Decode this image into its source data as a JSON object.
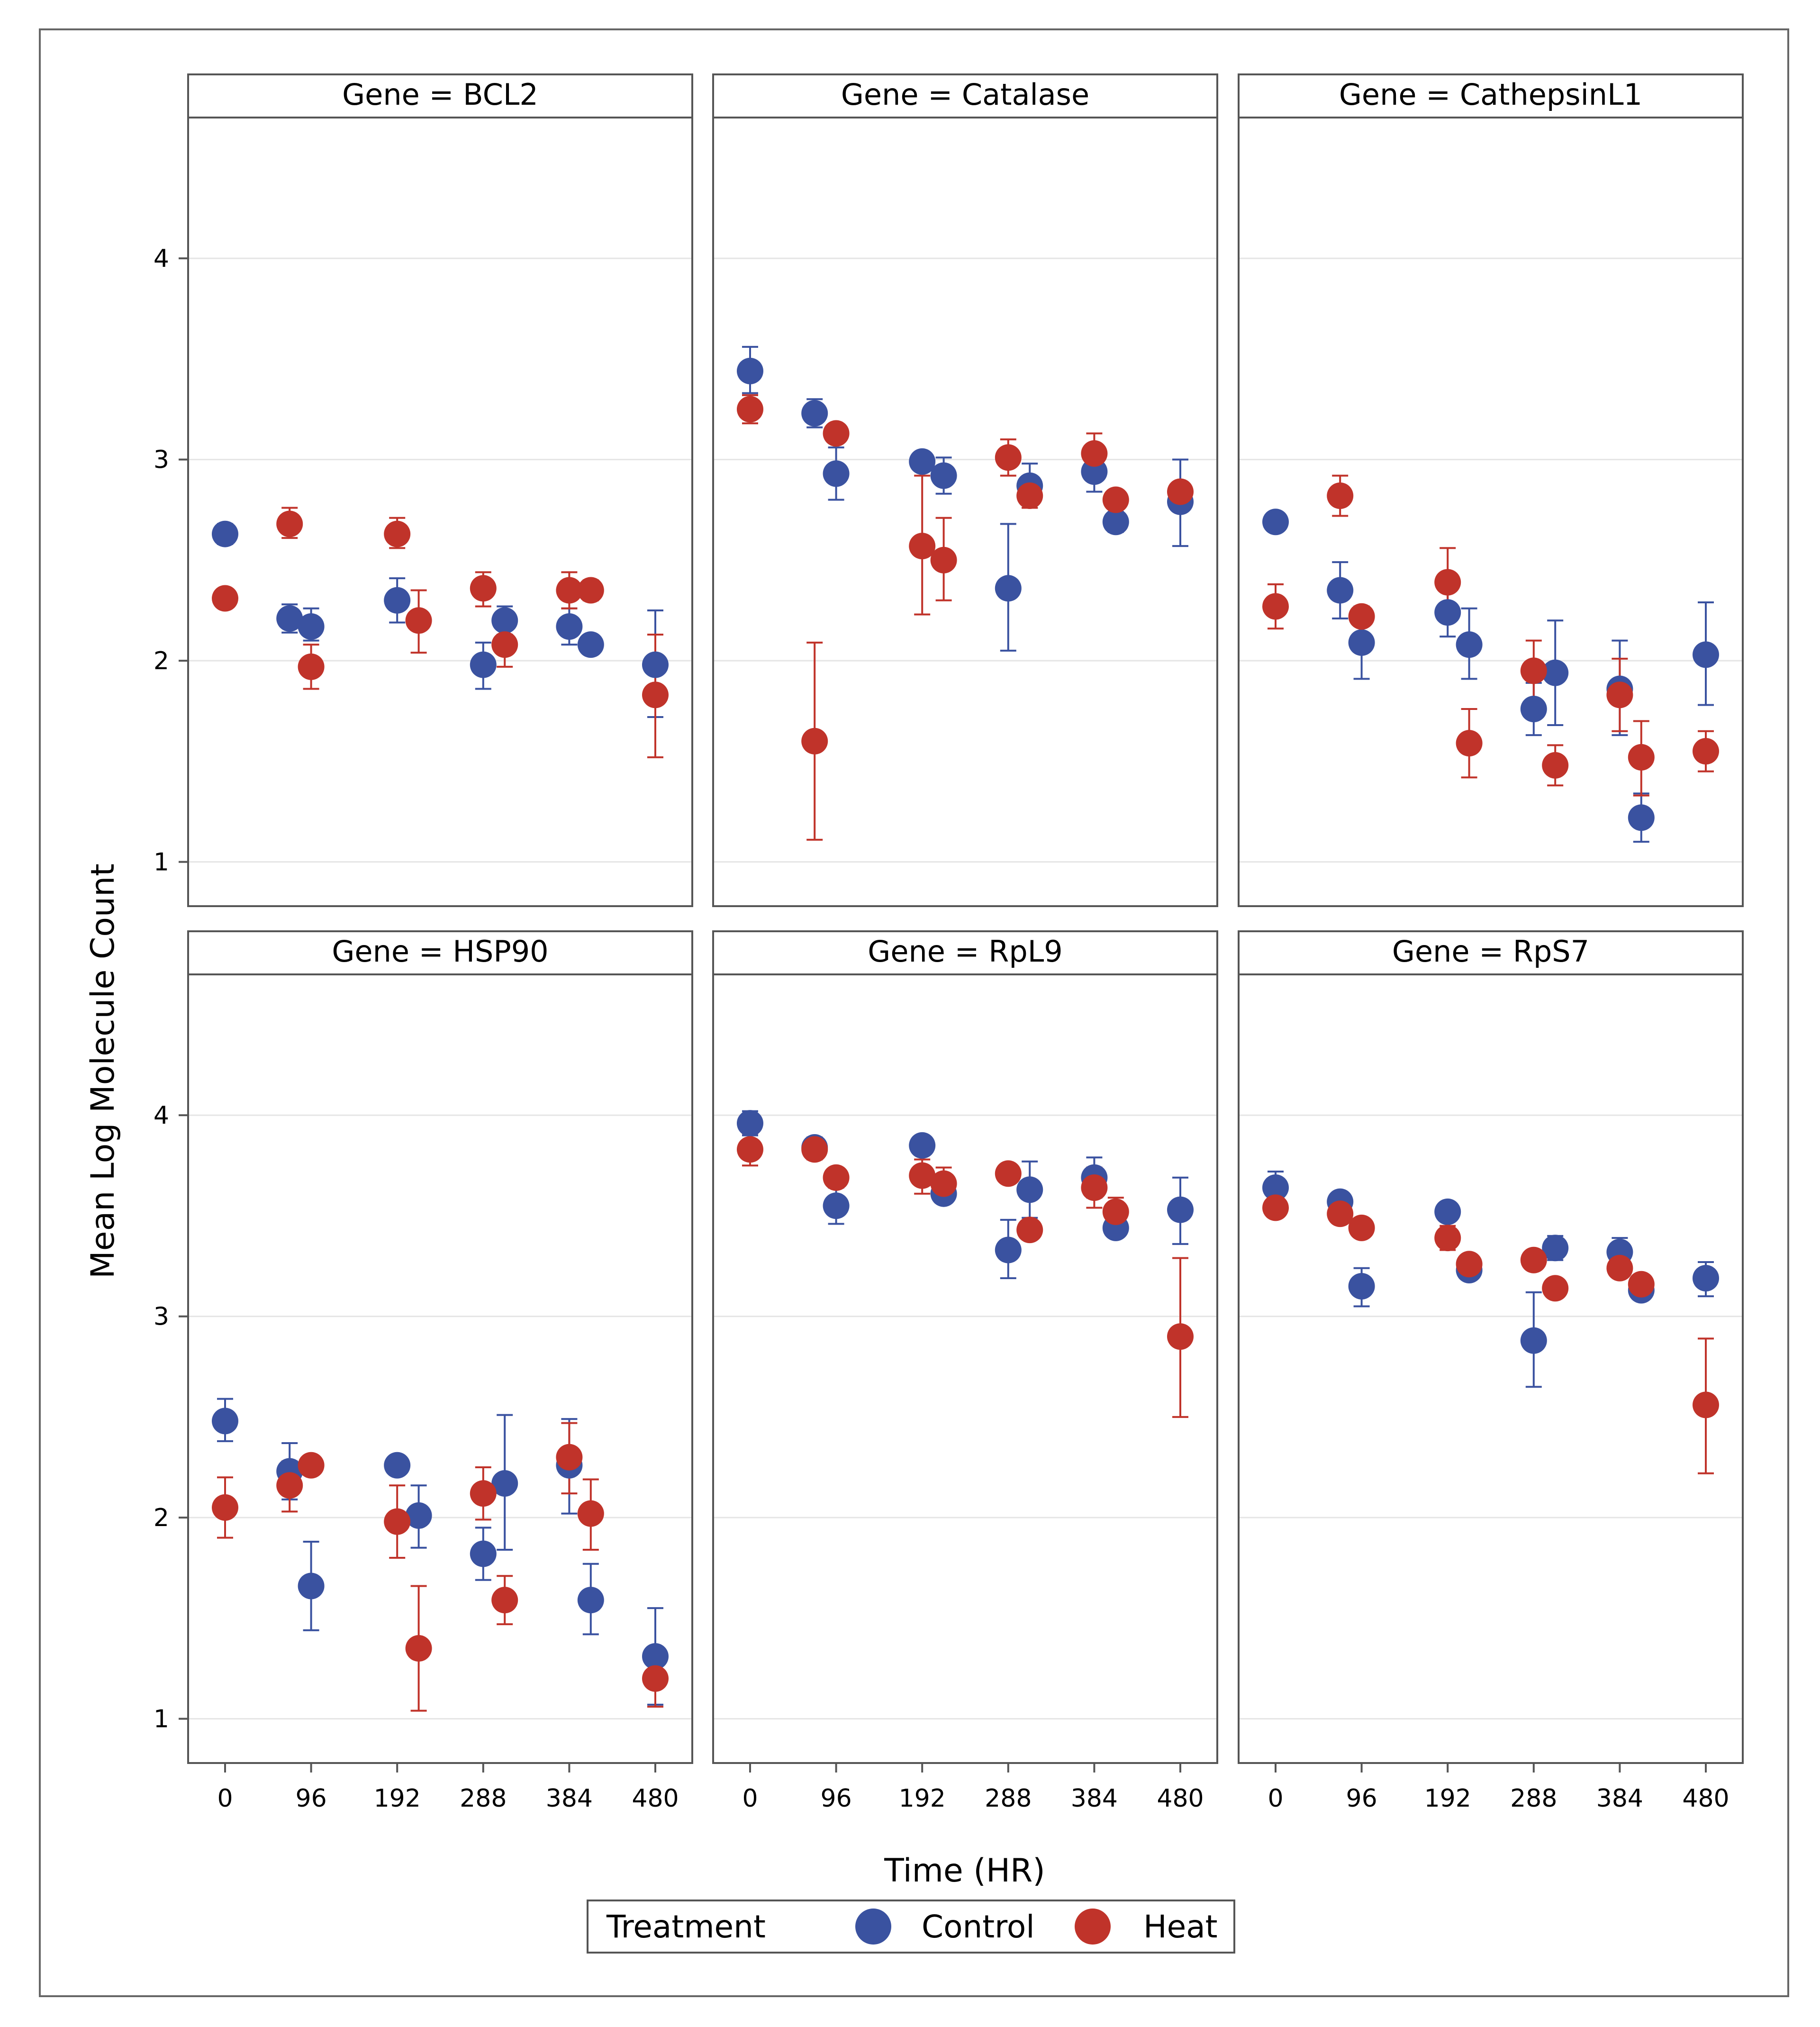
{
  "colors": {
    "control": "#3a52a0",
    "heat": "#c0332a",
    "grid": "#e5e5e5",
    "frame": "#555555",
    "header_bg": "#ffffff"
  },
  "chart_data": {
    "type": "scatter",
    "subtype": "dot plot with error bars, faceted panel",
    "xlabel": "Time (HR)",
    "ylabel": "Mean Log Molecule Count",
    "xticks": [
      0,
      96,
      192,
      288,
      384,
      480
    ],
    "yticks": [
      1,
      2,
      3,
      4
    ],
    "xlim": [
      -40,
      520
    ],
    "ylim": [
      0.78,
      4.7
    ],
    "grid": true,
    "legend": {
      "title": "Treatment",
      "placement": "bottom-center",
      "entries": [
        {
          "name": "Control",
          "color_key": "control"
        },
        {
          "name": "Heat",
          "color_key": "heat"
        }
      ]
    },
    "panels": [
      {
        "title": "Gene = BCL2",
        "series": [
          {
            "name": "Control",
            "points": [
              {
                "x": 0,
                "y": 2.63,
                "lo": 2.58,
                "hi": 2.68
              },
              {
                "x": 72,
                "y": 2.21,
                "lo": 2.14,
                "hi": 2.28
              },
              {
                "x": 96,
                "y": 2.17,
                "lo": 2.1,
                "hi": 2.26
              },
              {
                "x": 192,
                "y": 2.3,
                "lo": 2.19,
                "hi": 2.41
              },
              {
                "x": 288,
                "y": 1.98,
                "lo": 1.86,
                "hi": 2.09
              },
              {
                "x": 312,
                "y": 2.2,
                "lo": 2.13,
                "hi": 2.27
              },
              {
                "x": 384,
                "y": 2.17,
                "lo": 2.08,
                "hi": 2.26
              },
              {
                "x": 408,
                "y": 2.08,
                "lo": 2.05,
                "hi": 2.12
              },
              {
                "x": 480,
                "y": 1.98,
                "lo": 1.72,
                "hi": 2.25
              }
            ]
          },
          {
            "name": "Heat",
            "points": [
              {
                "x": 0,
                "y": 2.31,
                "lo": 2.29,
                "hi": 2.33
              },
              {
                "x": 72,
                "y": 2.68,
                "lo": 2.61,
                "hi": 2.76
              },
              {
                "x": 96,
                "y": 1.97,
                "lo": 1.86,
                "hi": 2.08
              },
              {
                "x": 192,
                "y": 2.63,
                "lo": 2.56,
                "hi": 2.71
              },
              {
                "x": 216,
                "y": 2.2,
                "lo": 2.04,
                "hi": 2.35
              },
              {
                "x": 288,
                "y": 2.36,
                "lo": 2.27,
                "hi": 2.44
              },
              {
                "x": 312,
                "y": 2.08,
                "lo": 1.97,
                "hi": 2.19
              },
              {
                "x": 384,
                "y": 2.35,
                "lo": 2.26,
                "hi": 2.44
              },
              {
                "x": 408,
                "y": 2.35,
                "lo": 2.3,
                "hi": 2.4
              },
              {
                "x": 480,
                "y": 1.83,
                "lo": 1.52,
                "hi": 2.13
              }
            ]
          }
        ]
      },
      {
        "title": "Gene = Catalase",
        "series": [
          {
            "name": "Control",
            "points": [
              {
                "x": 0,
                "y": 3.44,
                "lo": 3.33,
                "hi": 3.56
              },
              {
                "x": 72,
                "y": 3.23,
                "lo": 3.16,
                "hi": 3.3
              },
              {
                "x": 96,
                "y": 2.93,
                "lo": 2.8,
                "hi": 3.06
              },
              {
                "x": 192,
                "y": 2.99,
                "lo": 2.95,
                "hi": 3.03
              },
              {
                "x": 216,
                "y": 2.92,
                "lo": 2.83,
                "hi": 3.01
              },
              {
                "x": 288,
                "y": 2.36,
                "lo": 2.05,
                "hi": 2.68
              },
              {
                "x": 312,
                "y": 2.87,
                "lo": 2.76,
                "hi": 2.98
              },
              {
                "x": 384,
                "y": 2.94,
                "lo": 2.84,
                "hi": 3.04
              },
              {
                "x": 408,
                "y": 2.69,
                "lo": 2.64,
                "hi": 2.74
              },
              {
                "x": 480,
                "y": 2.79,
                "lo": 2.57,
                "hi": 3.0
              }
            ]
          },
          {
            "name": "Heat",
            "points": [
              {
                "x": 0,
                "y": 3.25,
                "lo": 3.18,
                "hi": 3.32
              },
              {
                "x": 72,
                "y": 1.6,
                "lo": 1.11,
                "hi": 2.09
              },
              {
                "x": 96,
                "y": 3.13,
                "lo": 3.09,
                "hi": 3.17
              },
              {
                "x": 192,
                "y": 2.57,
                "lo": 2.23,
                "hi": 2.92
              },
              {
                "x": 216,
                "y": 2.5,
                "lo": 2.3,
                "hi": 2.71
              },
              {
                "x": 288,
                "y": 3.01,
                "lo": 2.92,
                "hi": 3.1
              },
              {
                "x": 312,
                "y": 2.82,
                "lo": 2.76,
                "hi": 2.88
              },
              {
                "x": 384,
                "y": 3.03,
                "lo": 2.93,
                "hi": 3.13
              },
              {
                "x": 408,
                "y": 2.8,
                "lo": 2.76,
                "hi": 2.84
              },
              {
                "x": 480,
                "y": 2.84,
                "lo": 2.8,
                "hi": 2.88
              }
            ]
          }
        ]
      },
      {
        "title": "Gene = CathepsinL1",
        "series": [
          {
            "name": "Control",
            "points": [
              {
                "x": 0,
                "y": 2.69,
                "lo": 2.67,
                "hi": 2.71
              },
              {
                "x": 72,
                "y": 2.35,
                "lo": 2.21,
                "hi": 2.49
              },
              {
                "x": 96,
                "y": 2.09,
                "lo": 1.91,
                "hi": 2.27
              },
              {
                "x": 192,
                "y": 2.24,
                "lo": 2.12,
                "hi": 2.35
              },
              {
                "x": 216,
                "y": 2.08,
                "lo": 1.91,
                "hi": 2.26
              },
              {
                "x": 288,
                "y": 1.76,
                "lo": 1.63,
                "hi": 1.89
              },
              {
                "x": 312,
                "y": 1.94,
                "lo": 1.68,
                "hi": 2.2
              },
              {
                "x": 384,
                "y": 1.86,
                "lo": 1.63,
                "hi": 2.1
              },
              {
                "x": 408,
                "y": 1.22,
                "lo": 1.1,
                "hi": 1.34
              },
              {
                "x": 480,
                "y": 2.03,
                "lo": 1.78,
                "hi": 2.29
              }
            ]
          },
          {
            "name": "Heat",
            "points": [
              {
                "x": 0,
                "y": 2.27,
                "lo": 2.16,
                "hi": 2.38
              },
              {
                "x": 72,
                "y": 2.82,
                "lo": 2.72,
                "hi": 2.92
              },
              {
                "x": 96,
                "y": 2.22,
                "lo": 2.18,
                "hi": 2.26
              },
              {
                "x": 192,
                "y": 2.39,
                "lo": 2.22,
                "hi": 2.56
              },
              {
                "x": 216,
                "y": 1.59,
                "lo": 1.42,
                "hi": 1.76
              },
              {
                "x": 288,
                "y": 1.95,
                "lo": 1.8,
                "hi": 2.1
              },
              {
                "x": 312,
                "y": 1.48,
                "lo": 1.38,
                "hi": 1.58
              },
              {
                "x": 384,
                "y": 1.83,
                "lo": 1.65,
                "hi": 2.01
              },
              {
                "x": 408,
                "y": 1.52,
                "lo": 1.33,
                "hi": 1.7
              },
              {
                "x": 480,
                "y": 1.55,
                "lo": 1.45,
                "hi": 1.65
              }
            ]
          }
        ]
      },
      {
        "title": "Gene = HSP90",
        "series": [
          {
            "name": "Control",
            "points": [
              {
                "x": 0,
                "y": 2.48,
                "lo": 2.38,
                "hi": 2.59
              },
              {
                "x": 72,
                "y": 2.23,
                "lo": 2.09,
                "hi": 2.37
              },
              {
                "x": 96,
                "y": 1.66,
                "lo": 1.44,
                "hi": 1.88
              },
              {
                "x": 192,
                "y": 2.26,
                "lo": 2.22,
                "hi": 2.3
              },
              {
                "x": 216,
                "y": 2.01,
                "lo": 1.85,
                "hi": 2.16
              },
              {
                "x": 288,
                "y": 1.82,
                "lo": 1.69,
                "hi": 1.95
              },
              {
                "x": 312,
                "y": 2.17,
                "lo": 1.84,
                "hi": 2.51
              },
              {
                "x": 384,
                "y": 2.26,
                "lo": 2.02,
                "hi": 2.49
              },
              {
                "x": 408,
                "y": 1.59,
                "lo": 1.42,
                "hi": 1.77
              },
              {
                "x": 480,
                "y": 1.31,
                "lo": 1.07,
                "hi": 1.55
              }
            ]
          },
          {
            "name": "Heat",
            "points": [
              {
                "x": 0,
                "y": 2.05,
                "lo": 1.9,
                "hi": 2.2
              },
              {
                "x": 72,
                "y": 2.16,
                "lo": 2.03,
                "hi": 2.28
              },
              {
                "x": 96,
                "y": 2.26,
                "lo": 2.23,
                "hi": 2.29
              },
              {
                "x": 192,
                "y": 1.98,
                "lo": 1.8,
                "hi": 2.16
              },
              {
                "x": 216,
                "y": 1.35,
                "lo": 1.04,
                "hi": 1.66
              },
              {
                "x": 288,
                "y": 2.12,
                "lo": 1.99,
                "hi": 2.25
              },
              {
                "x": 312,
                "y": 1.59,
                "lo": 1.47,
                "hi": 1.71
              },
              {
                "x": 384,
                "y": 2.3,
                "lo": 2.12,
                "hi": 2.47
              },
              {
                "x": 408,
                "y": 2.02,
                "lo": 1.84,
                "hi": 2.19
              },
              {
                "x": 480,
                "y": 1.2,
                "lo": 1.06,
                "hi": 1.33
              }
            ]
          }
        ]
      },
      {
        "title": "Gene = RpL9",
        "series": [
          {
            "name": "Control",
            "points": [
              {
                "x": 0,
                "y": 3.96,
                "lo": 3.9,
                "hi": 4.02
              },
              {
                "x": 72,
                "y": 3.84,
                "lo": 3.8,
                "hi": 3.88
              },
              {
                "x": 96,
                "y": 3.55,
                "lo": 3.46,
                "hi": 3.64
              },
              {
                "x": 192,
                "y": 3.85,
                "lo": 3.81,
                "hi": 3.89
              },
              {
                "x": 216,
                "y": 3.61,
                "lo": 3.57,
                "hi": 3.65
              },
              {
                "x": 288,
                "y": 3.33,
                "lo": 3.19,
                "hi": 3.48
              },
              {
                "x": 312,
                "y": 3.63,
                "lo": 3.49,
                "hi": 3.77
              },
              {
                "x": 384,
                "y": 3.69,
                "lo": 3.59,
                "hi": 3.79
              },
              {
                "x": 408,
                "y": 3.44,
                "lo": 3.4,
                "hi": 3.48
              },
              {
                "x": 480,
                "y": 3.53,
                "lo": 3.36,
                "hi": 3.69
              }
            ]
          },
          {
            "name": "Heat",
            "points": [
              {
                "x": 0,
                "y": 3.83,
                "lo": 3.75,
                "hi": 3.91
              },
              {
                "x": 72,
                "y": 3.83,
                "lo": 3.78,
                "hi": 3.89
              },
              {
                "x": 96,
                "y": 3.69,
                "lo": 3.65,
                "hi": 3.73
              },
              {
                "x": 192,
                "y": 3.7,
                "lo": 3.61,
                "hi": 3.78
              },
              {
                "x": 216,
                "y": 3.66,
                "lo": 3.59,
                "hi": 3.74
              },
              {
                "x": 288,
                "y": 3.71,
                "lo": 3.67,
                "hi": 3.75
              },
              {
                "x": 312,
                "y": 3.43,
                "lo": 3.39,
                "hi": 3.47
              },
              {
                "x": 384,
                "y": 3.64,
                "lo": 3.54,
                "hi": 3.74
              },
              {
                "x": 408,
                "y": 3.52,
                "lo": 3.45,
                "hi": 3.59
              },
              {
                "x": 480,
                "y": 2.9,
                "lo": 2.5,
                "hi": 3.29
              }
            ]
          }
        ]
      },
      {
        "title": "Gene = RpS7",
        "series": [
          {
            "name": "Control",
            "points": [
              {
                "x": 0,
                "y": 3.64,
                "lo": 3.57,
                "hi": 3.72
              },
              {
                "x": 72,
                "y": 3.57,
                "lo": 3.53,
                "hi": 3.61
              },
              {
                "x": 96,
                "y": 3.15,
                "lo": 3.05,
                "hi": 3.24
              },
              {
                "x": 192,
                "y": 3.52,
                "lo": 3.48,
                "hi": 3.56
              },
              {
                "x": 216,
                "y": 3.23,
                "lo": 3.19,
                "hi": 3.27
              },
              {
                "x": 288,
                "y": 2.88,
                "lo": 2.65,
                "hi": 3.12
              },
              {
                "x": 312,
                "y": 3.34,
                "lo": 3.28,
                "hi": 3.4
              },
              {
                "x": 384,
                "y": 3.32,
                "lo": 3.25,
                "hi": 3.39
              },
              {
                "x": 408,
                "y": 3.13,
                "lo": 3.1,
                "hi": 3.16
              },
              {
                "x": 480,
                "y": 3.19,
                "lo": 3.1,
                "hi": 3.27
              }
            ]
          },
          {
            "name": "Heat",
            "points": [
              {
                "x": 0,
                "y": 3.54,
                "lo": 3.5,
                "hi": 3.58
              },
              {
                "x": 72,
                "y": 3.51,
                "lo": 3.47,
                "hi": 3.55
              },
              {
                "x": 96,
                "y": 3.44,
                "lo": 3.4,
                "hi": 3.48
              },
              {
                "x": 192,
                "y": 3.39,
                "lo": 3.33,
                "hi": 3.45
              },
              {
                "x": 216,
                "y": 3.26,
                "lo": 3.22,
                "hi": 3.3
              },
              {
                "x": 288,
                "y": 3.28,
                "lo": 3.24,
                "hi": 3.32
              },
              {
                "x": 312,
                "y": 3.14,
                "lo": 3.1,
                "hi": 3.18
              },
              {
                "x": 384,
                "y": 3.24,
                "lo": 3.2,
                "hi": 3.28
              },
              {
                "x": 408,
                "y": 3.16,
                "lo": 3.12,
                "hi": 3.2
              },
              {
                "x": 480,
                "y": 2.56,
                "lo": 2.22,
                "hi": 2.89
              }
            ]
          }
        ]
      }
    ]
  }
}
